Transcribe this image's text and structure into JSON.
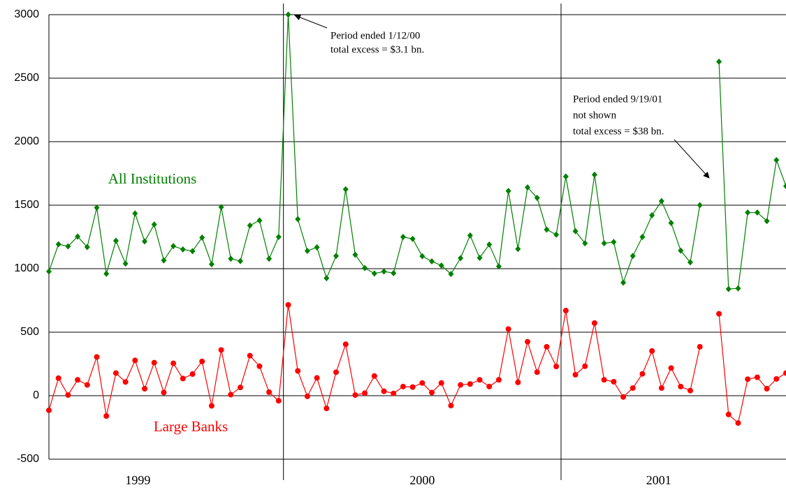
{
  "chart_data": {
    "type": "line",
    "x": [
      0,
      1,
      2,
      3,
      4,
      5,
      6,
      7,
      8,
      9,
      10,
      11,
      12,
      13,
      14,
      15,
      16,
      17,
      18,
      19,
      20,
      21,
      22,
      23,
      24,
      25,
      26,
      27,
      28,
      29,
      30,
      31,
      32,
      33,
      34,
      35,
      36,
      37,
      38,
      39,
      40,
      41,
      42,
      43,
      44,
      45,
      46,
      47,
      48,
      49,
      50,
      51,
      52,
      53,
      54,
      55,
      56,
      57,
      58,
      59,
      60,
      61,
      62,
      63,
      64,
      65,
      66,
      67,
      68,
      69,
      70,
      71,
      72,
      73,
      74,
      75,
      76,
      77
    ],
    "series": [
      {
        "name": "All Institutions",
        "color": "#008000",
        "marker": "diamond",
        "values": [
          978,
          1192,
          1176,
          1253,
          1170,
          1480,
          960,
          1220,
          1040,
          1435,
          1215,
          1348,
          1065,
          1178,
          1152,
          1138,
          1245,
          1035,
          1485,
          1078,
          1060,
          1340,
          1380,
          1078,
          1250,
          3000,
          1390,
          1140,
          1168,
          925,
          1100,
          1625,
          1110,
          1005,
          962,
          978,
          965,
          1250,
          1235,
          1098,
          1058,
          1025,
          958,
          1083,
          1262,
          1085,
          1190,
          1018,
          1612,
          1155,
          1640,
          1558,
          1308,
          1268,
          1725,
          1295,
          1200,
          1740,
          1200,
          1210,
          890,
          1100,
          1250,
          1420,
          1532,
          1360,
          1142,
          1050,
          1500,
          null,
          2630,
          840,
          845,
          1442,
          1442,
          1375,
          1855,
          1650
        ]
      },
      {
        "name": "Large Banks",
        "color": "#ff0000",
        "marker": "circle",
        "values": [
          -115,
          138,
          5,
          125,
          85,
          305,
          -160,
          178,
          108,
          278,
          55,
          260,
          25,
          255,
          135,
          170,
          270,
          -80,
          360,
          8,
          65,
          315,
          232,
          28,
          -40,
          715,
          195,
          -5,
          140,
          -100,
          185,
          405,
          5,
          20,
          155,
          35,
          18,
          72,
          68,
          100,
          25,
          100,
          -78,
          85,
          92,
          125,
          72,
          125,
          525,
          105,
          425,
          185,
          385,
          230,
          670,
          165,
          232,
          572,
          125,
          110,
          -10,
          60,
          172,
          352,
          60,
          218,
          72,
          40,
          385,
          null,
          645,
          -148,
          -215,
          130,
          145,
          55,
          132,
          178
        ]
      }
    ],
    "xlim": [
      0,
      77
    ],
    "xticks": [
      {
        "value": 9.3,
        "label": "1999"
      },
      {
        "value": 39,
        "label": "2000"
      },
      {
        "value": 63.7,
        "label": "2001"
      }
    ],
    "xgrid": [
      24.5,
      53.5
    ],
    "ylim": [
      -500,
      3000
    ],
    "yticks": [
      -500,
      0,
      500,
      1000,
      1500,
      2000,
      2500,
      3000
    ],
    "grid": true,
    "annotations": [
      {
        "lines": [
          "Period ended 1/12/00",
          "total excess = $3.1 bn."
        ]
      },
      {
        "lines": [
          "Period ended 9/19/01",
          "not shown",
          "total excess = $38 bn."
        ]
      }
    ]
  }
}
